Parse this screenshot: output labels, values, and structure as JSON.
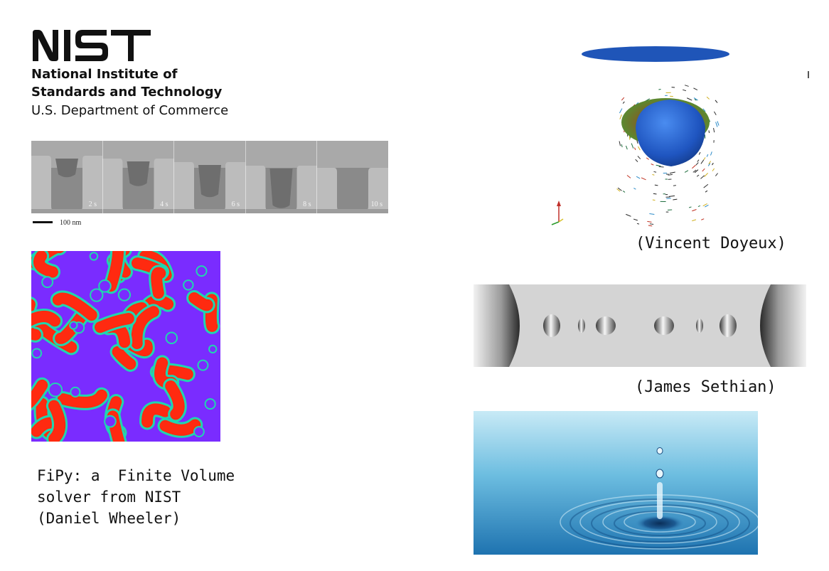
{
  "logo": {
    "wordmark": "NIST",
    "line1": "National Institute of",
    "line2": "Standards and Technology",
    "line3": "U.S. Department of Commerce"
  },
  "sem_strip": {
    "time_labels": [
      "2 s",
      "4 s",
      "6 s",
      "8 s",
      "10 s"
    ],
    "fill_levels": [
      0.15,
      0.35,
      0.6,
      0.85,
      1.0
    ],
    "scale_label": "100 nm"
  },
  "captions": {
    "fipy": [
      "FiPy: a  Finite Volume",
      "solver from NIST",
      "(Daniel Wheeler)"
    ],
    "doyeux": "(Vincent Doyeux)",
    "sethian": "(James Sethian)"
  },
  "colors": {
    "pattern_red": "#ff2a10",
    "pattern_purple": "#7a2cff",
    "pattern_interface": "#1fd6b0",
    "bubble_blue": "#1f5fc8",
    "water_blue": "#3d9fd0"
  },
  "icons": {
    "axis_triad": "axis-triad-icon"
  }
}
